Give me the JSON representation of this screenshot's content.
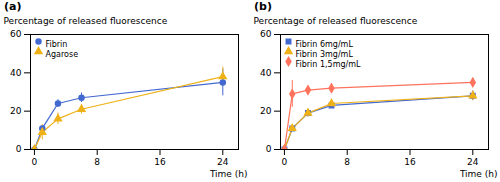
{
  "chart_data": [
    {
      "type": "line",
      "title": "(a)",
      "x": [
        0,
        1,
        3,
        6,
        24
      ],
      "xlabel": "Time (h)",
      "ylabel": "Percentage of released fluorescence",
      "xlim": [
        -0.5,
        26
      ],
      "ylim": [
        0,
        60
      ],
      "xticks": [
        0,
        8,
        16,
        24
      ],
      "yticks": [
        0,
        20,
        40,
        60
      ],
      "legend": "upper left",
      "grid": false,
      "series": [
        {
          "name": "Fibrin",
          "marker": "circle",
          "values": [
            0,
            11,
            24,
            27,
            35
          ],
          "errors": [
            0,
            1.5,
            2,
            2.5,
            7
          ]
        },
        {
          "name": "Agarose",
          "marker": "triangle",
          "values": [
            0,
            9,
            16,
            21,
            38
          ],
          "errors": [
            0,
            4,
            3,
            2.5,
            5
          ]
        }
      ]
    },
    {
      "type": "line",
      "title": "(b)",
      "x": [
        0,
        1,
        3,
        6,
        24
      ],
      "xlabel": "Time (h)",
      "ylabel": "Percentage of released fluorescence",
      "xlim": [
        -0.5,
        26
      ],
      "ylim": [
        0,
        60
      ],
      "xticks": [
        0,
        8,
        16,
        24
      ],
      "yticks": [
        0,
        20,
        40,
        60
      ],
      "legend": "upper left",
      "grid": false,
      "series": [
        {
          "name": "Fibrin 6mg/mL",
          "marker": "square",
          "values": [
            0,
            11,
            19,
            23,
            28
          ],
          "errors": [
            0,
            1.5,
            2,
            1.5,
            2.5
          ]
        },
        {
          "name": "Fibrin 3mg/mL",
          "marker": "triangle",
          "values": [
            0,
            11,
            19,
            24,
            28
          ],
          "errors": [
            0,
            1.5,
            2,
            1.5,
            2.5
          ]
        },
        {
          "name": "Fibrin 1,5mg/mL",
          "marker": "diamond",
          "values": [
            0,
            29,
            31,
            32,
            35
          ],
          "errors": [
            0,
            7,
            2,
            1.5,
            2
          ]
        }
      ]
    }
  ]
}
